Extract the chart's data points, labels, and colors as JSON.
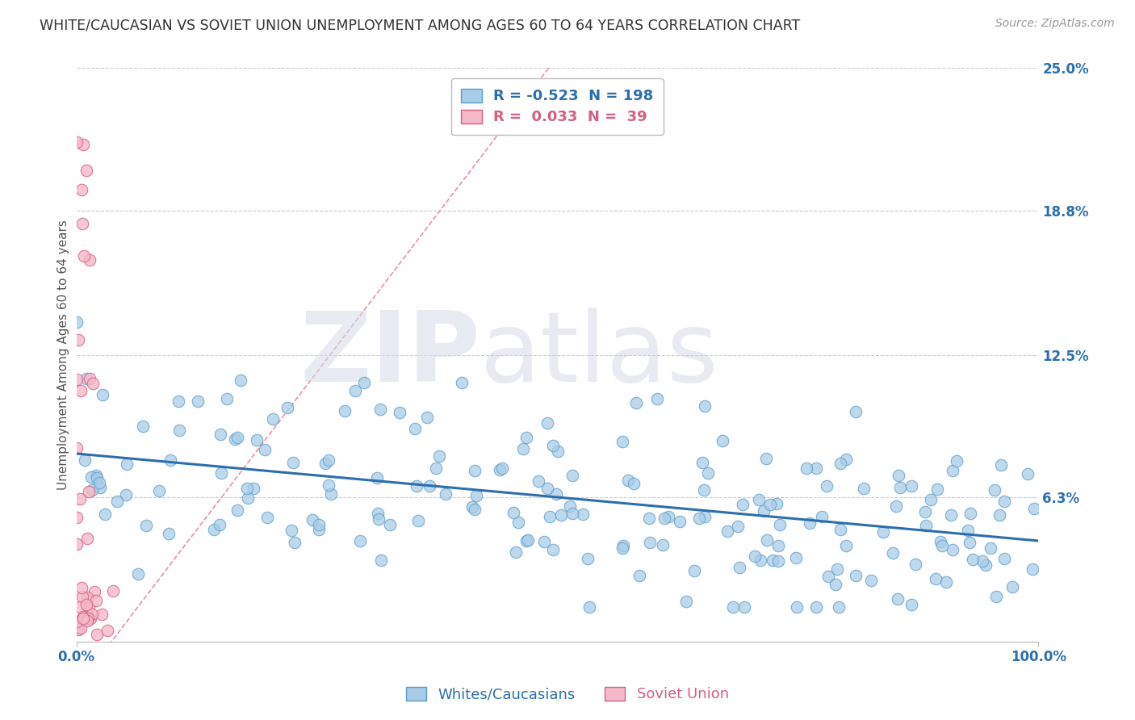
{
  "title": "WHITE/CAUCASIAN VS SOVIET UNION UNEMPLOYMENT AMONG AGES 60 TO 64 YEARS CORRELATION CHART",
  "source": "Source: ZipAtlas.com",
  "ylabel": "Unemployment Among Ages 60 to 64 years",
  "xlim": [
    0,
    100
  ],
  "ylim": [
    0,
    25
  ],
  "yticks": [
    6.3,
    12.5,
    18.8,
    25.0
  ],
  "ytick_labels": [
    "6.3%",
    "12.5%",
    "18.8%",
    "25.0%"
  ],
  "xticks": [
    0,
    100
  ],
  "xtick_labels": [
    "0.0%",
    "100.0%"
  ],
  "grid_color": "#cccccc",
  "background_color": "#ffffff",
  "blue_color": "#a8cce8",
  "blue_edge_color": "#5b9dc9",
  "pink_color": "#f4b8c8",
  "pink_edge_color": "#d46080",
  "blue_line_color": "#2c6fad",
  "pink_line_color": "#e08098",
  "legend_blue_r": "-0.523",
  "legend_blue_n": "198",
  "legend_pink_r": "0.033",
  "legend_pink_n": "39",
  "legend_label_blue": "Whites/Caucasians",
  "legend_label_pink": "Soviet Union",
  "watermark_zip": "ZIP",
  "watermark_atlas": "atlas",
  "blue_line_intercept": 8.2,
  "blue_line_slope": -0.038,
  "pink_line_intercept": -2.0,
  "pink_line_slope": 0.55,
  "title_fontsize": 12.5,
  "axis_label_fontsize": 11,
  "tick_fontsize": 12,
  "legend_fontsize": 13,
  "source_fontsize": 10
}
